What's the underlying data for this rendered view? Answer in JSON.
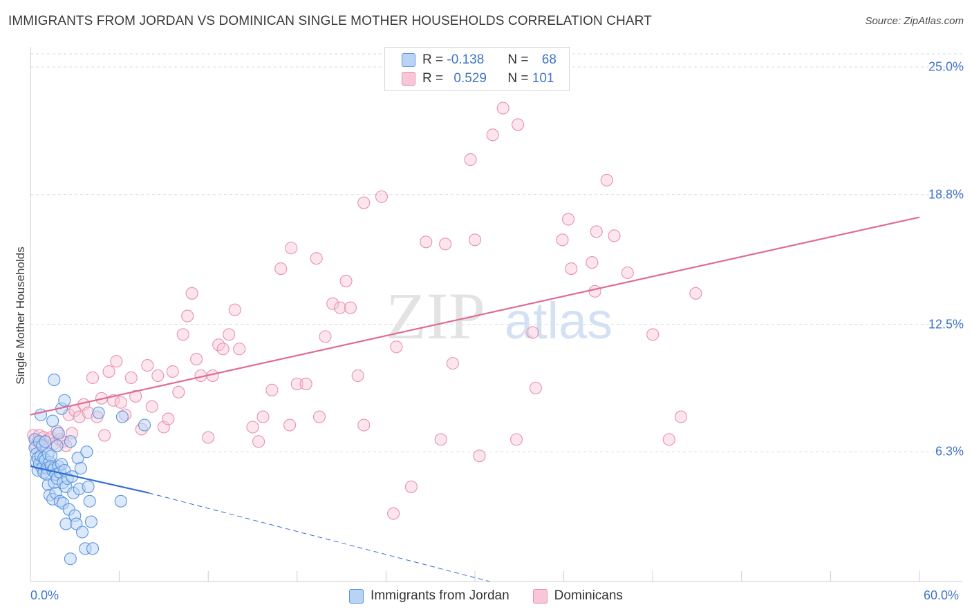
{
  "title": "IMMIGRANTS FROM JORDAN VS DOMINICAN SINGLE MOTHER HOUSEHOLDS CORRELATION CHART",
  "source": "Source: ZipAtlas.com",
  "watermark": {
    "zip": "ZIP",
    "atlas": "atlas"
  },
  "colors": {
    "jordan_fill": "#b9d3f5",
    "jordan_stroke": "#5b95dd",
    "jordan_line": "#2f6fd0",
    "dominican_fill": "#f8c6d6",
    "dominican_stroke": "#e790ad",
    "dominican_line": "#e06a93",
    "grid": "#d9d9d9",
    "axis_text": "#3f74c9"
  },
  "legend": {
    "rows": [
      {
        "r_label": "R =",
        "r_value": "-0.138",
        "n_label": "N =",
        "n_value": "68"
      },
      {
        "r_label": "R =",
        "r_value": "0.529",
        "n_label": "N =",
        "n_value": "101"
      }
    ]
  },
  "bottom_legend": [
    "Immigrants from Jordan",
    "Dominicans"
  ],
  "chart_data": {
    "type": "scatter",
    "title": "IMMIGRANTS FROM JORDAN VS DOMINICAN SINGLE MOTHER HOUSEHOLDS CORRELATION CHART",
    "xlabel": "",
    "ylabel": "Single Mother Households",
    "xlim": [
      0,
      60
    ],
    "ylim": [
      0,
      25.8
    ],
    "x_tick_labels": [
      "0.0%",
      "60.0%"
    ],
    "y_ticks": [
      6.3,
      12.5,
      18.8,
      25.0
    ],
    "y_tick_labels": [
      "6.3%",
      "12.5%",
      "18.8%",
      "25.0%"
    ],
    "grid": true,
    "legend_position": "top-center",
    "series": [
      {
        "name": "Immigrants from Jordan",
        "r": -0.138,
        "n": 68,
        "trend": {
          "x": [
            0,
            8
          ],
          "y": [
            5.6,
            4.3
          ],
          "dashed_to": [
            31,
            0
          ]
        },
        "points": [
          [
            0.3,
            6.9
          ],
          [
            0.3,
            6.5
          ],
          [
            0.4,
            6.2
          ],
          [
            0.4,
            5.8
          ],
          [
            0.5,
            5.4
          ],
          [
            0.5,
            6.0
          ],
          [
            0.6,
            5.7
          ],
          [
            0.6,
            6.8
          ],
          [
            0.7,
            8.1
          ],
          [
            0.7,
            6.1
          ],
          [
            0.8,
            5.5
          ],
          [
            0.8,
            6.6
          ],
          [
            0.9,
            6.0
          ],
          [
            0.9,
            5.3
          ],
          [
            1.0,
            6.8
          ],
          [
            1.0,
            5.9
          ],
          [
            1.1,
            5.5
          ],
          [
            1.1,
            5.2
          ],
          [
            1.2,
            4.7
          ],
          [
            1.2,
            6.2
          ],
          [
            1.3,
            5.8
          ],
          [
            1.3,
            4.2
          ],
          [
            1.4,
            6.1
          ],
          [
            1.4,
            5.6
          ],
          [
            1.5,
            5.4
          ],
          [
            1.5,
            4.0
          ],
          [
            1.6,
            5.5
          ],
          [
            1.6,
            4.8
          ],
          [
            1.7,
            5.2
          ],
          [
            1.7,
            4.3
          ],
          [
            1.8,
            6.6
          ],
          [
            1.8,
            5.0
          ],
          [
            1.9,
            7.2
          ],
          [
            1.9,
            5.6
          ],
          [
            2.0,
            5.3
          ],
          [
            2.0,
            3.9
          ],
          [
            2.1,
            8.4
          ],
          [
            2.1,
            5.7
          ],
          [
            2.2,
            4.8
          ],
          [
            2.2,
            3.8
          ],
          [
            2.3,
            8.8
          ],
          [
            2.3,
            5.4
          ],
          [
            2.4,
            4.6
          ],
          [
            2.4,
            2.8
          ],
          [
            2.5,
            5.0
          ],
          [
            2.6,
            3.5
          ],
          [
            2.7,
            6.8
          ],
          [
            2.7,
            1.1
          ],
          [
            2.8,
            5.1
          ],
          [
            2.9,
            4.3
          ],
          [
            3.0,
            3.2
          ],
          [
            3.1,
            2.8
          ],
          [
            3.2,
            6.0
          ],
          [
            3.3,
            4.5
          ],
          [
            3.4,
            5.5
          ],
          [
            3.5,
            2.4
          ],
          [
            3.7,
            1.6
          ],
          [
            3.8,
            6.3
          ],
          [
            3.9,
            4.6
          ],
          [
            4.0,
            3.9
          ],
          [
            4.1,
            2.9
          ],
          [
            4.2,
            1.6
          ],
          [
            4.6,
            8.2
          ],
          [
            6.1,
            3.9
          ],
          [
            6.2,
            8.0
          ],
          [
            7.7,
            7.6
          ],
          [
            1.5,
            7.8
          ],
          [
            1.6,
            9.8
          ]
        ]
      },
      {
        "name": "Dominicans",
        "r": 0.529,
        "n": 101,
        "trend": {
          "x": [
            0,
            60
          ],
          "y": [
            8.1,
            17.7
          ]
        },
        "points": [
          [
            0.2,
            7.1
          ],
          [
            0.3,
            6.9
          ],
          [
            0.4,
            6.6
          ],
          [
            0.5,
            6.8
          ],
          [
            0.6,
            7.1
          ],
          [
            0.7,
            6.7
          ],
          [
            0.9,
            7.0
          ],
          [
            1.0,
            6.8
          ],
          [
            1.2,
            6.9
          ],
          [
            1.4,
            7.0
          ],
          [
            1.6,
            6.7
          ],
          [
            1.8,
            7.3
          ],
          [
            2.0,
            6.9
          ],
          [
            2.2,
            6.8
          ],
          [
            2.4,
            6.6
          ],
          [
            2.6,
            8.1
          ],
          [
            2.8,
            7.2
          ],
          [
            3.0,
            8.3
          ],
          [
            3.3,
            8.0
          ],
          [
            3.6,
            8.6
          ],
          [
            3.9,
            8.2
          ],
          [
            4.2,
            9.9
          ],
          [
            4.5,
            8.0
          ],
          [
            4.8,
            8.9
          ],
          [
            5.0,
            7.1
          ],
          [
            5.3,
            10.2
          ],
          [
            5.6,
            8.8
          ],
          [
            5.8,
            10.7
          ],
          [
            6.1,
            8.7
          ],
          [
            6.4,
            8.1
          ],
          [
            6.8,
            9.9
          ],
          [
            7.1,
            9.0
          ],
          [
            7.5,
            7.4
          ],
          [
            7.9,
            10.5
          ],
          [
            8.2,
            8.5
          ],
          [
            8.6,
            10.0
          ],
          [
            9.0,
            7.5
          ],
          [
            9.3,
            7.9
          ],
          [
            9.6,
            10.2
          ],
          [
            10.0,
            9.2
          ],
          [
            10.3,
            12.0
          ],
          [
            10.6,
            12.9
          ],
          [
            10.9,
            14.0
          ],
          [
            11.2,
            10.8
          ],
          [
            11.5,
            10.0
          ],
          [
            12.0,
            7.0
          ],
          [
            12.3,
            10.0
          ],
          [
            12.7,
            11.5
          ],
          [
            13.0,
            11.3
          ],
          [
            13.4,
            12.0
          ],
          [
            13.8,
            13.2
          ],
          [
            14.1,
            11.3
          ],
          [
            15.0,
            7.5
          ],
          [
            15.4,
            6.8
          ],
          [
            15.7,
            8.0
          ],
          [
            16.3,
            9.3
          ],
          [
            16.9,
            15.2
          ],
          [
            17.5,
            7.6
          ],
          [
            17.6,
            16.2
          ],
          [
            18.0,
            9.6
          ],
          [
            18.6,
            9.6
          ],
          [
            19.3,
            15.7
          ],
          [
            19.5,
            8.0
          ],
          [
            19.9,
            11.9
          ],
          [
            20.4,
            13.5
          ],
          [
            20.9,
            13.3
          ],
          [
            21.3,
            14.6
          ],
          [
            21.6,
            13.3
          ],
          [
            22.1,
            10.0
          ],
          [
            22.5,
            18.4
          ],
          [
            22.5,
            7.6
          ],
          [
            23.7,
            18.7
          ],
          [
            24.5,
            3.3
          ],
          [
            24.7,
            11.4
          ],
          [
            25.7,
            4.6
          ],
          [
            26.7,
            16.5
          ],
          [
            27.7,
            6.9
          ],
          [
            28.0,
            16.4
          ],
          [
            28.5,
            10.6
          ],
          [
            29.7,
            20.5
          ],
          [
            30.0,
            16.6
          ],
          [
            30.3,
            6.1
          ],
          [
            31.2,
            21.7
          ],
          [
            31.9,
            23.0
          ],
          [
            32.8,
            6.9
          ],
          [
            32.9,
            22.2
          ],
          [
            33.9,
            12.1
          ],
          [
            34.1,
            9.4
          ],
          [
            35.9,
            16.6
          ],
          [
            36.3,
            17.6
          ],
          [
            36.5,
            15.2
          ],
          [
            37.9,
            15.5
          ],
          [
            38.1,
            14.1
          ],
          [
            38.2,
            17.0
          ],
          [
            38.9,
            19.5
          ],
          [
            39.4,
            16.8
          ],
          [
            40.3,
            15.0
          ],
          [
            42.0,
            12.0
          ],
          [
            43.1,
            6.9
          ],
          [
            43.9,
            8.0
          ],
          [
            44.9,
            14.0
          ]
        ]
      }
    ]
  }
}
